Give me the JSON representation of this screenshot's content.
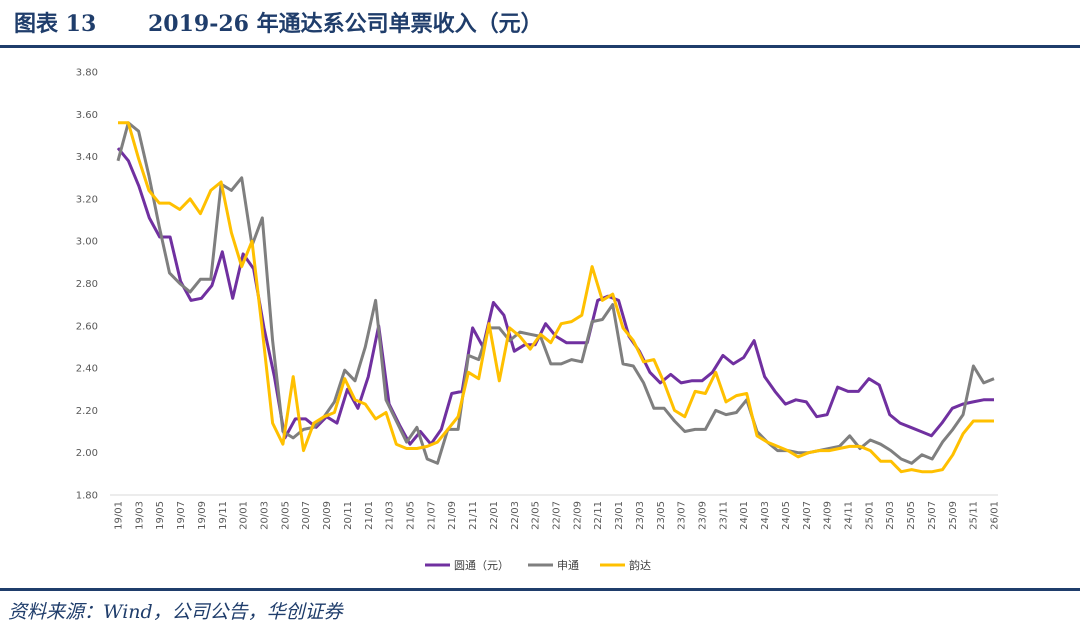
{
  "header": {
    "figure_label": "图表 13",
    "title": "2019-26 年通达系公司单票收入（元）"
  },
  "footer": {
    "source": "资料来源：Wind，公司公告，华创证券"
  },
  "chart_data": {
    "type": "line",
    "title": "2019-26 年通达系公司单票收入（元）",
    "xlabel": "",
    "ylabel": "",
    "ylim": [
      1.8,
      3.8
    ],
    "yticks": [
      "1.80",
      "2.00",
      "2.20",
      "2.40",
      "2.60",
      "2.80",
      "3.00",
      "3.20",
      "3.40",
      "3.60",
      "3.80"
    ],
    "ytick_values": [
      1.8,
      2.0,
      2.2,
      2.4,
      2.6,
      2.8,
      3.0,
      3.2,
      3.4,
      3.6,
      3.8
    ],
    "grid": false,
    "legend_position": "bottom",
    "x_tick_labels": [
      "19/01",
      "19/03",
      "19/05",
      "19/07",
      "19/09",
      "19/11",
      "20/01",
      "20/03",
      "20/05",
      "20/07",
      "20/09",
      "20/11",
      "21/01",
      "21/03",
      "21/05",
      "21/07",
      "21/09",
      "21/11",
      "22/01",
      "22/03",
      "22/05",
      "22/07",
      "22/09",
      "22/11",
      "23/01",
      "23/03",
      "23/05",
      "23/07",
      "23/09",
      "23/11",
      "24/01",
      "24/03",
      "24/05",
      "24/07",
      "24/09",
      "24/11",
      "25/01",
      "25/03",
      "25/05",
      "25/07",
      "25/09",
      "25/11",
      "26/01"
    ],
    "series": [
      {
        "name": "圆通（元）",
        "color": "#7030a0",
        "values": [
          3.44,
          3.38,
          3.26,
          3.11,
          3.02,
          3.02,
          2.81,
          2.72,
          2.73,
          2.79,
          2.95,
          2.73,
          2.94,
          2.87,
          2.59,
          2.36,
          2.07,
          2.16,
          2.16,
          2.12,
          2.17,
          2.14,
          2.3,
          2.21,
          2.36,
          2.6,
          2.23,
          2.13,
          2.04,
          2.1,
          2.04,
          2.11,
          2.28,
          2.29,
          2.59,
          2.5,
          2.71,
          2.65,
          2.48,
          2.51,
          2.51,
          2.61,
          2.55,
          2.52,
          2.52,
          2.52,
          2.72,
          2.74,
          2.72,
          2.55,
          2.48,
          2.38,
          2.33,
          2.37,
          2.33,
          2.34,
          2.34,
          2.38,
          2.46,
          2.42,
          2.45,
          2.53,
          2.36,
          2.29,
          2.23,
          2.25,
          2.24,
          2.17,
          2.18,
          2.31,
          2.29,
          2.29,
          2.35,
          2.32,
          2.18,
          2.14,
          2.12,
          2.1,
          2.08,
          2.14,
          2.21,
          2.23,
          2.24,
          2.25,
          2.25
        ]
      },
      {
        "name": "申通",
        "color": "#7f7f7f",
        "values": [
          3.38,
          3.56,
          3.52,
          3.31,
          3.07,
          2.85,
          2.8,
          2.76,
          2.82,
          2.82,
          3.27,
          3.24,
          3.3,
          2.98,
          3.11,
          2.53,
          2.1,
          2.07,
          2.11,
          2.12,
          2.17,
          2.24,
          2.39,
          2.34,
          2.5,
          2.72,
          2.25,
          2.15,
          2.05,
          2.12,
          1.97,
          1.95,
          2.11,
          2.11,
          2.46,
          2.44,
          2.59,
          2.59,
          2.53,
          2.57,
          2.56,
          2.55,
          2.42,
          2.42,
          2.44,
          2.43,
          2.62,
          2.63,
          2.7,
          2.42,
          2.41,
          2.33,
          2.21,
          2.21,
          2.15,
          2.1,
          2.11,
          2.11,
          2.2,
          2.18,
          2.19,
          2.25,
          2.1,
          2.05,
          2.01,
          2.01,
          2.0,
          2.0,
          2.01,
          2.02,
          2.03,
          2.08,
          2.02,
          2.06,
          2.04,
          2.01,
          1.97,
          1.95,
          1.99,
          1.97,
          2.05,
          2.11,
          2.18,
          2.41,
          2.33,
          2.35
        ]
      },
      {
        "name": "韵达",
        "color": "#ffc000",
        "values": [
          3.56,
          3.56,
          3.39,
          3.24,
          3.18,
          3.18,
          3.15,
          3.2,
          3.13,
          3.24,
          3.28,
          3.04,
          2.88,
          3.0,
          2.58,
          2.14,
          2.04,
          2.36,
          2.01,
          2.14,
          2.17,
          2.19,
          2.35,
          2.25,
          2.23,
          2.16,
          2.19,
          2.04,
          2.02,
          2.02,
          2.03,
          2.05,
          2.11,
          2.17,
          2.38,
          2.35,
          2.61,
          2.34,
          2.59,
          2.55,
          2.49,
          2.56,
          2.52,
          2.61,
          2.62,
          2.65,
          2.88,
          2.72,
          2.75,
          2.59,
          2.53,
          2.43,
          2.44,
          2.33,
          2.2,
          2.17,
          2.29,
          2.28,
          2.38,
          2.24,
          2.27,
          2.28,
          2.08,
          2.05,
          2.03,
          2.01,
          1.98,
          2.0,
          2.01,
          2.01,
          2.02,
          2.03,
          2.03,
          2.01,
          1.96,
          1.96,
          1.91,
          1.92,
          1.91,
          1.91,
          1.92,
          1.99,
          2.09,
          2.15,
          2.15,
          2.15
        ]
      }
    ]
  }
}
